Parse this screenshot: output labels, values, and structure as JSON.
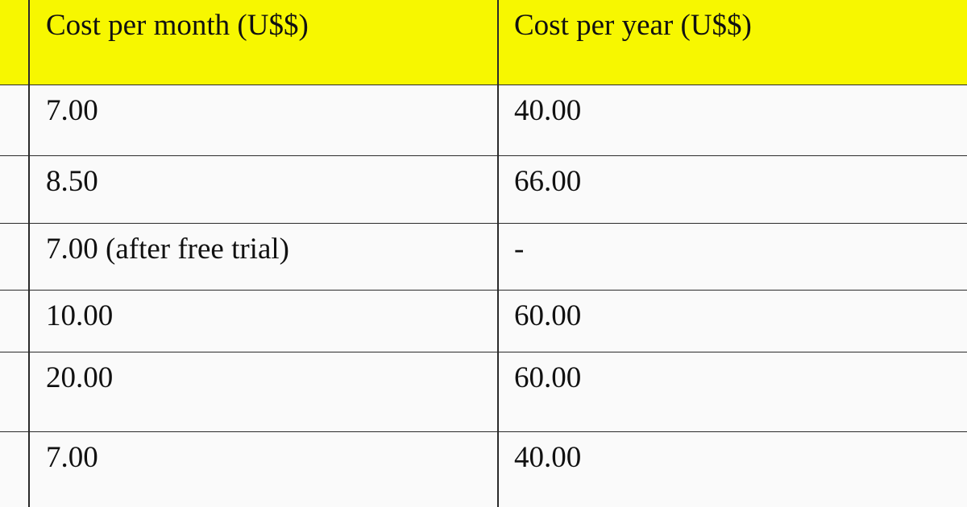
{
  "table": {
    "header": [
      "Cost per month (U$$)",
      "Cost per year (U$$)"
    ],
    "rows": [
      [
        "7.00",
        "40.00"
      ],
      [
        "8.50",
        "66.00"
      ],
      [
        "7.00 (after free trial)",
        "-"
      ],
      [
        "10.00",
        "60.00"
      ],
      [
        "20.00",
        "60.00"
      ],
      [
        "7.00",
        "40.00"
      ]
    ]
  }
}
